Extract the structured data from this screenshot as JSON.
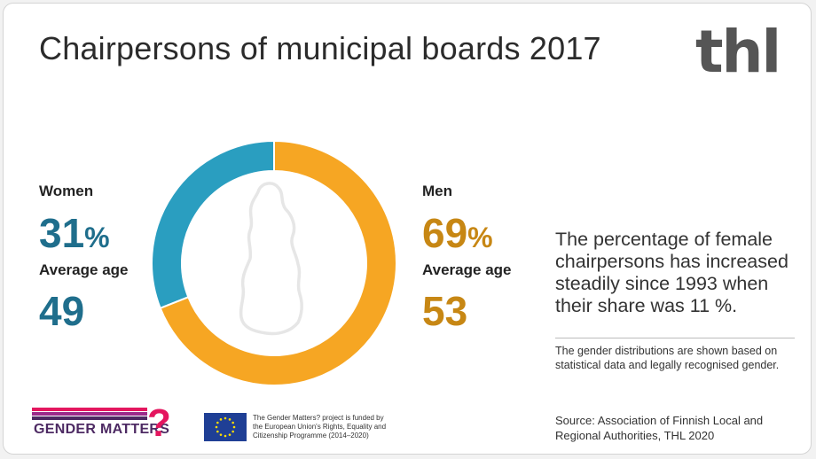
{
  "title": "Chairpersons of municipal boards 2017",
  "logo_text": "thl",
  "women": {
    "label": "Women",
    "percent": "31",
    "percent_sign": "%",
    "age_label": "Average age",
    "age": "49"
  },
  "men": {
    "label": "Men",
    "percent": "69",
    "percent_sign": "%",
    "age_label": "Average age",
    "age": "53"
  },
  "description": "The percentage of female chairpersons has increased steadily since 1993 when their share was 11 %.",
  "note": "The gender distributions are shown based on statistical data and legally recognised gender.",
  "source": "Source:  Association of Finnish Local and Regional Authorities, THL 2020",
  "footer": {
    "gender_matters_logo": "GENDER MATTERS",
    "gender_matters_mark": "?",
    "eu_funding_text": "The Gender Matters? project is funded by the European Union's Rights, Equality and Citizenship Programme (2014–2020)"
  },
  "colors": {
    "women": "#2a9ec0",
    "men": "#f6a623",
    "women_text": "#1f6e8c",
    "men_text": "#c78714",
    "map_outline": "#e6e6e6"
  },
  "chart_data": {
    "type": "pie",
    "variant": "donut",
    "categories": [
      "Women",
      "Men"
    ],
    "values": [
      31,
      69
    ],
    "unit": "%",
    "title": "Chairpersons of municipal boards 2017"
  }
}
